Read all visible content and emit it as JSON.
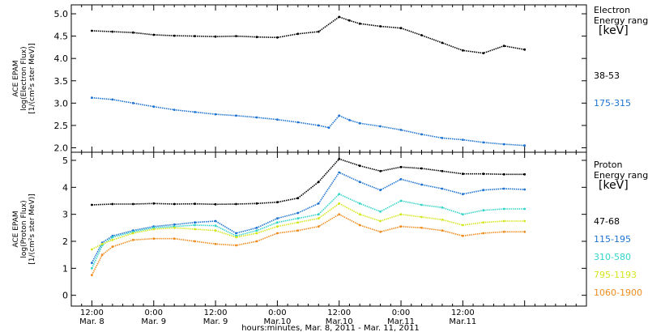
{
  "chart_data": [
    {
      "type": "line",
      "panel": "electron",
      "ylabel_lines": [
        "ACE EPAM",
        "log(Electron Flux)",
        "[1/(cm²s ster MeV)]"
      ],
      "yticks": [
        "2.0",
        "2.5",
        "3.0",
        "3.5",
        "4.0",
        "4.5",
        "5.0"
      ],
      "ylim": [
        1.9,
        5.2
      ],
      "legend_title": [
        "Electron",
        "Energy range",
        "[keV]"
      ],
      "series": [
        {
          "name": "38-53",
          "color": "#000000",
          "x": [
            0,
            4,
            8,
            12,
            16,
            20,
            24,
            28,
            32,
            36,
            40,
            44,
            48,
            50,
            52,
            56,
            60,
            64,
            68,
            72,
            76,
            80,
            84
          ],
          "y": [
            4.62,
            4.6,
            4.58,
            4.53,
            4.51,
            4.5,
            4.49,
            4.5,
            4.48,
            4.47,
            4.55,
            4.6,
            4.93,
            4.85,
            4.78,
            4.72,
            4.68,
            4.52,
            4.35,
            4.18,
            4.12,
            4.28,
            4.2
          ]
        },
        {
          "name": "175-315",
          "color": "#1e73d2",
          "x": [
            0,
            4,
            8,
            12,
            16,
            20,
            24,
            28,
            32,
            36,
            40,
            44,
            46,
            48,
            50,
            52,
            56,
            60,
            64,
            68,
            72,
            76,
            80,
            84
          ],
          "y": [
            3.12,
            3.08,
            3.0,
            2.92,
            2.85,
            2.8,
            2.75,
            2.72,
            2.68,
            2.63,
            2.57,
            2.5,
            2.45,
            2.72,
            2.62,
            2.55,
            2.48,
            2.4,
            2.3,
            2.22,
            2.18,
            2.12,
            2.08,
            2.05
          ]
        }
      ]
    },
    {
      "type": "line",
      "panel": "proton",
      "ylabel_lines": [
        "ACE EPAM",
        "log(Proton Flux)",
        "[1/(cm²s ster MeV)]"
      ],
      "yticks": [
        "0",
        "1",
        "2",
        "3",
        "4",
        "5"
      ],
      "ylim": [
        -0.4,
        5.3
      ],
      "legend_title": [
        "Proton",
        "Energy range",
        "[keV]"
      ],
      "series": [
        {
          "name": "47-68",
          "color": "#000000",
          "x": [
            0,
            4,
            8,
            12,
            16,
            20,
            24,
            28,
            32,
            36,
            40,
            44,
            48,
            52,
            56,
            60,
            64,
            68,
            72,
            76,
            80,
            84
          ],
          "y": [
            3.35,
            3.38,
            3.38,
            3.4,
            3.38,
            3.39,
            3.37,
            3.38,
            3.4,
            3.45,
            3.6,
            4.2,
            5.05,
            4.8,
            4.6,
            4.75,
            4.7,
            4.6,
            4.5,
            4.5,
            4.48,
            4.48
          ]
        },
        {
          "name": "115-195",
          "color": "#1e73d2",
          "x": [
            0,
            2,
            4,
            8,
            12,
            16,
            20,
            24,
            28,
            32,
            36,
            40,
            44,
            48,
            52,
            56,
            60,
            64,
            68,
            72,
            76,
            80,
            84
          ],
          "y": [
            1.2,
            1.95,
            2.2,
            2.4,
            2.55,
            2.62,
            2.7,
            2.75,
            2.3,
            2.5,
            2.85,
            3.05,
            3.4,
            4.55,
            4.2,
            3.9,
            4.3,
            4.1,
            3.95,
            3.75,
            3.9,
            3.95,
            3.92
          ]
        },
        {
          "name": "310-580",
          "color": "#33d4c8",
          "x": [
            0,
            2,
            4,
            8,
            12,
            16,
            20,
            24,
            28,
            32,
            36,
            40,
            44,
            48,
            52,
            56,
            60,
            64,
            68,
            72,
            76,
            80,
            84
          ],
          "y": [
            1.0,
            1.85,
            2.15,
            2.35,
            2.5,
            2.55,
            2.6,
            2.58,
            2.2,
            2.4,
            2.7,
            2.85,
            3.0,
            3.75,
            3.4,
            3.1,
            3.5,
            3.35,
            3.25,
            3.0,
            3.15,
            3.2,
            3.2
          ]
        },
        {
          "name": "795-1193",
          "color": "#d4e61e",
          "x": [
            0,
            2,
            4,
            8,
            12,
            16,
            20,
            24,
            28,
            32,
            36,
            40,
            44,
            48,
            52,
            56,
            60,
            64,
            68,
            72,
            76,
            80,
            84
          ],
          "y": [
            1.7,
            1.9,
            2.05,
            2.3,
            2.45,
            2.5,
            2.45,
            2.4,
            2.15,
            2.3,
            2.55,
            2.7,
            2.85,
            3.4,
            3.0,
            2.75,
            3.0,
            2.9,
            2.8,
            2.6,
            2.7,
            2.75,
            2.75
          ]
        },
        {
          "name": "1060-1900",
          "color": "#f08c1e",
          "x": [
            0,
            2,
            4,
            8,
            12,
            16,
            20,
            24,
            28,
            32,
            36,
            40,
            44,
            48,
            52,
            56,
            60,
            64,
            68,
            72,
            76,
            80,
            84
          ],
          "y": [
            0.75,
            1.5,
            1.8,
            2.05,
            2.1,
            2.1,
            2.0,
            1.9,
            1.85,
            2.0,
            2.3,
            2.4,
            2.55,
            3.0,
            2.6,
            2.35,
            2.55,
            2.5,
            2.4,
            2.2,
            2.3,
            2.35,
            2.35
          ]
        }
      ]
    }
  ],
  "x_axis": {
    "xlim": [
      -4,
      96
    ],
    "ticks": [
      {
        "x": 0,
        "time": "12:00",
        "date": "Mar. 8"
      },
      {
        "x": 12,
        "time": "0:00",
        "date": "Mar. 9"
      },
      {
        "x": 24,
        "time": "12:00",
        "date": "Mar. 9"
      },
      {
        "x": 36,
        "time": "0:00",
        "date": "Mar.10"
      },
      {
        "x": 48,
        "time": "12:00",
        "date": "Mar.10"
      },
      {
        "x": 60,
        "time": "0:00",
        "date": "Mar.11"
      },
      {
        "x": 72,
        "time": "12:00",
        "date": "Mar.11"
      }
    ],
    "xlabel": "hours:minutes, Mar. 8, 2011 - Mar. 11, 2011"
  }
}
